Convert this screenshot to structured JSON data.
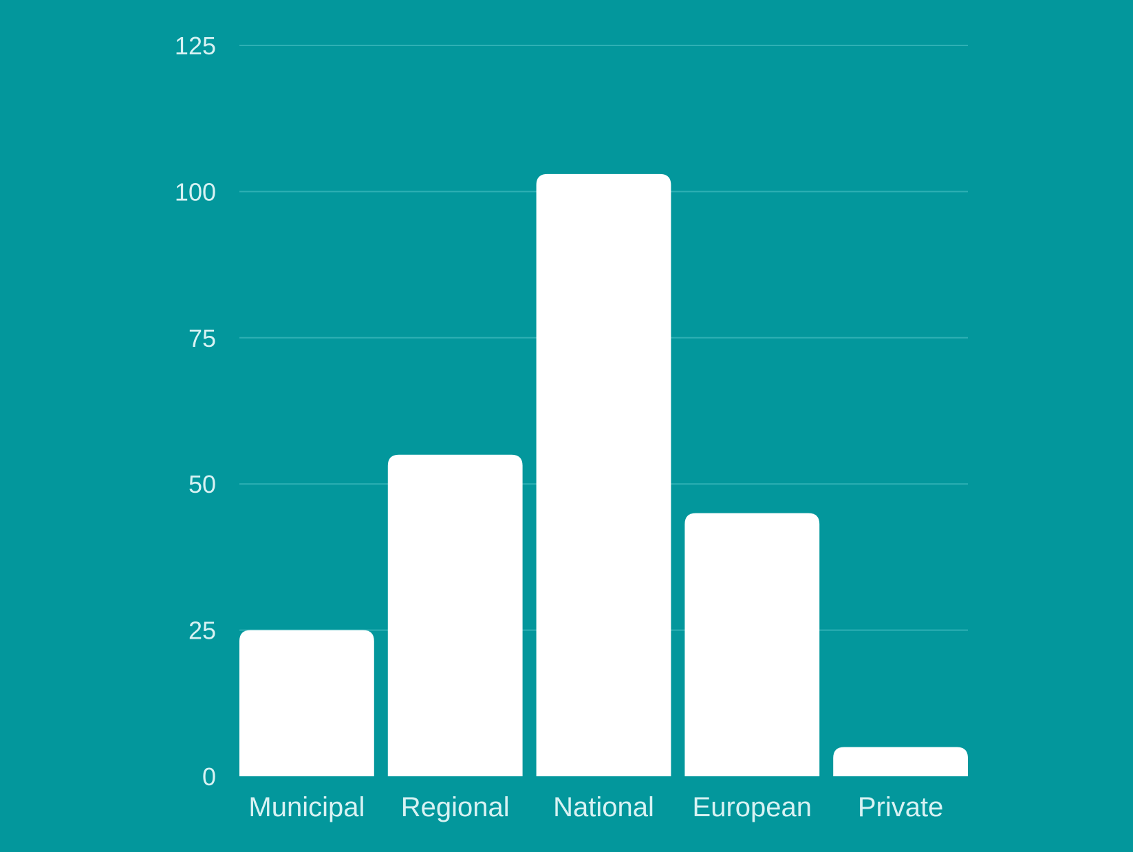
{
  "colors": {
    "background": "#03979c",
    "bar": "#ffffff",
    "grid": "#2fb0b4",
    "text": "#d8f2f3"
  },
  "chart_data": {
    "type": "bar",
    "title": "",
    "xlabel": "",
    "ylabel": "",
    "categories": [
      "Municipal",
      "Regional",
      "National",
      "European",
      "Private"
    ],
    "values": [
      25,
      55,
      103,
      45,
      5
    ],
    "ylim": [
      0,
      125
    ],
    "yticks": [
      0,
      25,
      50,
      75,
      100,
      125
    ],
    "grid": true,
    "legend": "none"
  }
}
